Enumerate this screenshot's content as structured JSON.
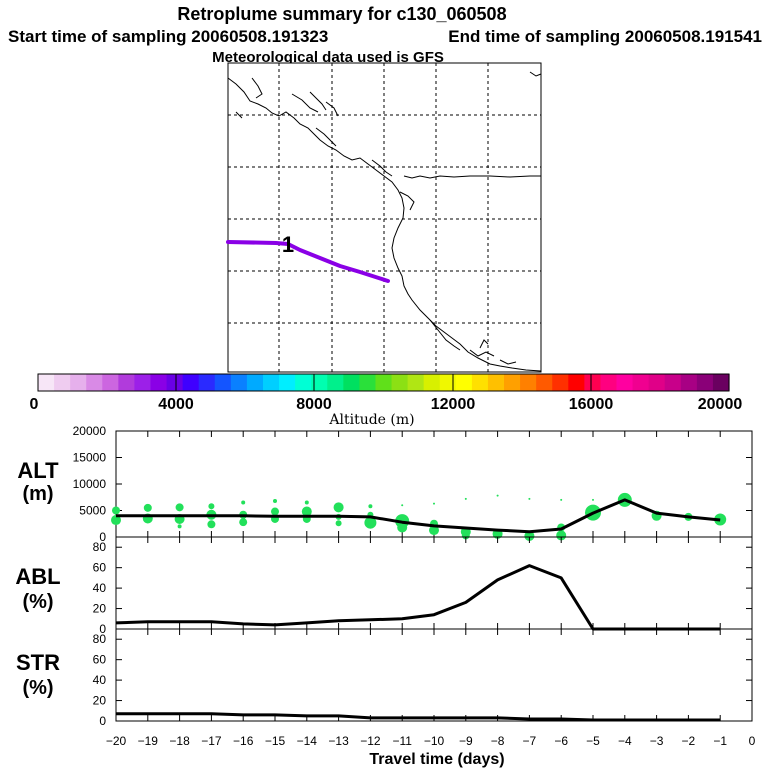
{
  "header": {
    "title": "Retroplume summary for c130_060508",
    "start_label": "Start time of sampling 20060508.191323",
    "end_label": "End time of sampling 20060508.191541",
    "met_label": "Meteorological data used is GFS"
  },
  "map": {
    "trajectory_color": "#8a00e6",
    "marker_label": "1"
  },
  "colorbar": {
    "label": "Altitude (m)",
    "tick_labels": [
      "0",
      "4000",
      "8000",
      "12000",
      "16000",
      "20000"
    ],
    "colors": [
      "#f7e6f7",
      "#efccf0",
      "#e6b0ec",
      "#d98ae6",
      "#cc66e0",
      "#b13bdc",
      "#9c20e8",
      "#8a00e6",
      "#6a00e6",
      "#3f00ff",
      "#2a2aff",
      "#1455ff",
      "#0a80ff",
      "#00aaff",
      "#00cfff",
      "#00eeff",
      "#00ffd5",
      "#00ffb0",
      "#00f08c",
      "#00e060",
      "#2ae03a",
      "#60e01a",
      "#8ce014",
      "#b0e614",
      "#d8f000",
      "#f0f800",
      "#ffff00",
      "#ffe000",
      "#ffc000",
      "#ffa000",
      "#ff8000",
      "#ff5a00",
      "#ff3000",
      "#ff0000",
      "#ff0050",
      "#ff0080",
      "#ff00a0",
      "#f00090",
      "#e00088",
      "#c8008a",
      "#a80084",
      "#8a0078",
      "#6a0060"
    ]
  },
  "chart_data": {
    "type": "line",
    "x_label": "Travel time (days)",
    "x_ticks": [
      -20,
      -19,
      -18,
      -17,
      -16,
      -15,
      -14,
      -13,
      -12,
      -11,
      -10,
      -9,
      -8,
      -7,
      -6,
      -5,
      -4,
      -3,
      -2,
      -1,
      0
    ],
    "x_tick_labels": [
      "−20",
      "−19",
      "−18",
      "−17",
      "−16",
      "−15",
      "−14",
      "−13",
      "−12",
      "−11",
      "−10",
      "−9",
      "−8",
      "−7",
      "−6",
      "−5",
      "−4",
      "−3",
      "−2",
      "−1",
      "0"
    ],
    "xlim": [
      -20,
      0
    ],
    "panels": [
      {
        "label_line1": "ALT",
        "label_line2": "(m)",
        "ylim": [
          0,
          20000
        ],
        "y_ticks": [
          0,
          5000,
          10000,
          15000,
          20000
        ],
        "y_tick_labels": [
          "0",
          "5000",
          "10000",
          "15000",
          "20000"
        ],
        "x": [
          -20,
          -19,
          -18,
          -17,
          -16,
          -15,
          -14,
          -13,
          -12,
          -11,
          -10,
          -9,
          -8,
          -7,
          -6,
          -5,
          -4,
          -3,
          -2,
          -1
        ],
        "values": [
          4000,
          4000,
          4000,
          4000,
          4000,
          3900,
          3900,
          3900,
          3800,
          2800,
          2100,
          1700,
          1300,
          1000,
          1500,
          4500,
          7000,
          4500,
          3800,
          3200
        ],
        "scatter_color": "#22e05a",
        "scatter": [
          {
            "x": -20,
            "y": 3200,
            "s": 5
          },
          {
            "x": -20,
            "y": 5000,
            "s": 4
          },
          {
            "x": -19,
            "y": 3500,
            "s": 5
          },
          {
            "x": -19,
            "y": 5500,
            "s": 4
          },
          {
            "x": -18,
            "y": 3400,
            "s": 5
          },
          {
            "x": -18,
            "y": 5600,
            "s": 4
          },
          {
            "x": -18,
            "y": 2000,
            "s": 2
          },
          {
            "x": -17,
            "y": 4200,
            "s": 5
          },
          {
            "x": -17,
            "y": 2400,
            "s": 4
          },
          {
            "x": -17,
            "y": 5800,
            "s": 3
          },
          {
            "x": -16,
            "y": 4200,
            "s": 4
          },
          {
            "x": -16,
            "y": 2800,
            "s": 4
          },
          {
            "x": -16,
            "y": 6500,
            "s": 2
          },
          {
            "x": -15,
            "y": 4800,
            "s": 4
          },
          {
            "x": -15,
            "y": 3400,
            "s": 4
          },
          {
            "x": -15,
            "y": 6800,
            "s": 2
          },
          {
            "x": -14,
            "y": 4800,
            "s": 5
          },
          {
            "x": -14,
            "y": 3400,
            "s": 4
          },
          {
            "x": -14,
            "y": 6500,
            "s": 2
          },
          {
            "x": -13,
            "y": 5600,
            "s": 5
          },
          {
            "x": -13,
            "y": 3800,
            "s": 3
          },
          {
            "x": -13,
            "y": 2600,
            "s": 3
          },
          {
            "x": -12,
            "y": 2700,
            "s": 6
          },
          {
            "x": -12,
            "y": 4200,
            "s": 3
          },
          {
            "x": -12,
            "y": 5800,
            "s": 2
          },
          {
            "x": -11,
            "y": 3000,
            "s": 7
          },
          {
            "x": -11,
            "y": 1800,
            "s": 5
          },
          {
            "x": -11,
            "y": 6000,
            "s": 1
          },
          {
            "x": -10,
            "y": 1300,
            "s": 5
          },
          {
            "x": -10,
            "y": 2500,
            "s": 4
          },
          {
            "x": -10,
            "y": 6300,
            "s": 1
          },
          {
            "x": -9,
            "y": 1000,
            "s": 5
          },
          {
            "x": -9,
            "y": 300,
            "s": 4
          },
          {
            "x": -9,
            "y": 7200,
            "s": 1
          },
          {
            "x": -8,
            "y": 600,
            "s": 5
          },
          {
            "x": -8,
            "y": 7800,
            "s": 1
          },
          {
            "x": -7,
            "y": 200,
            "s": 5
          },
          {
            "x": -7,
            "y": 7200,
            "s": 1
          },
          {
            "x": -6,
            "y": 300,
            "s": 5
          },
          {
            "x": -6,
            "y": 1800,
            "s": 4
          },
          {
            "x": -6,
            "y": 7000,
            "s": 1
          },
          {
            "x": -5,
            "y": 4600,
            "s": 8
          },
          {
            "x": -5,
            "y": 7000,
            "s": 1
          },
          {
            "x": -4,
            "y": 7000,
            "s": 7
          },
          {
            "x": -3,
            "y": 4000,
            "s": 5
          },
          {
            "x": -2,
            "y": 3800,
            "s": 4
          },
          {
            "x": -1,
            "y": 3300,
            "s": 6
          }
        ]
      },
      {
        "label_line1": "ABL",
        "label_line2": "(%)",
        "ylim": [
          0,
          90
        ],
        "y_ticks": [
          0,
          20,
          40,
          60,
          80
        ],
        "y_tick_labels": [
          "0",
          "20",
          "40",
          "60",
          "80"
        ],
        "x": [
          -20,
          -19,
          -18,
          -17,
          -16,
          -15,
          -14,
          -13,
          -12,
          -11,
          -10,
          -9,
          -8,
          -7,
          -6,
          -5,
          -4,
          -3,
          -2,
          -1
        ],
        "values": [
          6,
          7,
          7,
          7,
          5,
          4,
          6,
          8,
          9,
          10,
          14,
          26,
          48,
          62,
          50,
          0,
          0,
          0,
          0,
          0
        ]
      },
      {
        "label_line1": "STR",
        "label_line2": "(%)",
        "ylim": [
          0,
          90
        ],
        "y_ticks": [
          0,
          20,
          40,
          60,
          80
        ],
        "y_tick_labels": [
          "0",
          "20",
          "40",
          "60",
          "80"
        ],
        "x": [
          -20,
          -19,
          -18,
          -17,
          -16,
          -15,
          -14,
          -13,
          -12,
          -11,
          -10,
          -9,
          -8,
          -7,
          -6,
          -5,
          -4,
          -3,
          -2,
          -1
        ],
        "values": [
          7,
          7,
          7,
          7,
          6,
          6,
          5,
          5,
          3,
          3,
          3,
          3,
          3,
          2,
          2,
          1,
          1,
          1,
          1,
          1
        ]
      }
    ]
  }
}
